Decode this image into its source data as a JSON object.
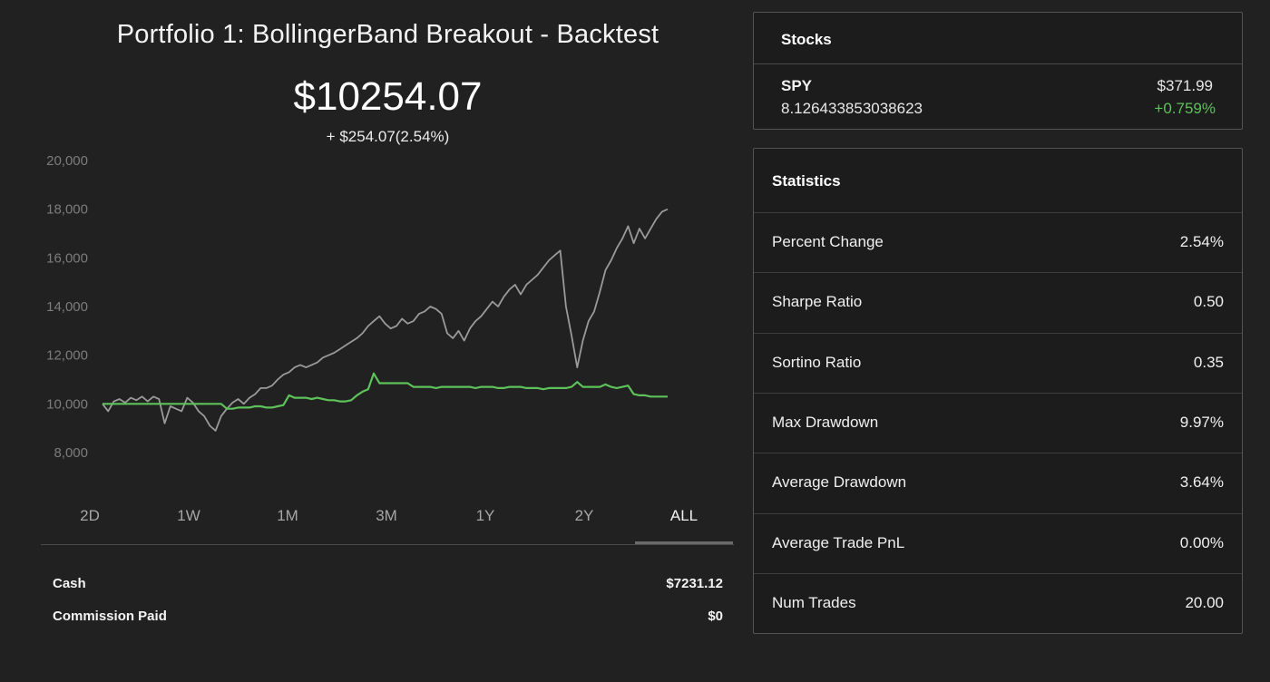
{
  "portfolio": {
    "title": "Portfolio 1: BollingerBand Breakout - Backtest",
    "value": "$10254.07",
    "change": "+ $254.07(2.54%)"
  },
  "ranges": [
    {
      "label": "2D",
      "active": false
    },
    {
      "label": "1W",
      "active": false
    },
    {
      "label": "1M",
      "active": false
    },
    {
      "label": "3M",
      "active": false
    },
    {
      "label": "1Y",
      "active": false
    },
    {
      "label": "2Y",
      "active": false
    },
    {
      "label": "ALL",
      "active": true
    }
  ],
  "account": {
    "cash_label": "Cash",
    "cash_value": "$7231.12",
    "commission_label": "Commission Paid",
    "commission_value": "$0"
  },
  "stocks": {
    "header": "Stocks",
    "items": [
      {
        "symbol": "SPY",
        "price": "$371.99",
        "quantity": "8.126433853038623",
        "change": "+0.759%"
      }
    ]
  },
  "statistics": {
    "header": "Statistics",
    "rows": [
      {
        "label": "Percent Change",
        "value": "2.54%"
      },
      {
        "label": "Sharpe Ratio",
        "value": "0.50"
      },
      {
        "label": "Sortino Ratio",
        "value": "0.35"
      },
      {
        "label": "Max Drawdown",
        "value": "9.97%"
      },
      {
        "label": "Average Drawdown",
        "value": "3.64%"
      },
      {
        "label": "Average Trade PnL",
        "value": "0.00%"
      },
      {
        "label": "Num Trades",
        "value": "20.00"
      }
    ]
  },
  "colors": {
    "benchmark_line": "#9a9a9a",
    "portfolio_line": "#5ec25a",
    "positive_change": "#5cc05c",
    "background": "#212121"
  },
  "chart_data": {
    "type": "line",
    "yticks": [
      "20,000",
      "18,000",
      "16,000",
      "14,000",
      "12,000",
      "10,000",
      "8,000"
    ],
    "ylim": [
      8000,
      20000
    ],
    "x": [
      0,
      1,
      2,
      3,
      4,
      5,
      6,
      7,
      8,
      9,
      10,
      11,
      12,
      13,
      14,
      15,
      16,
      17,
      18,
      19,
      20,
      21,
      22,
      23,
      24,
      25,
      26,
      27,
      28,
      29,
      30,
      31,
      32,
      33,
      34,
      35,
      36,
      37,
      38,
      39,
      40,
      41,
      42,
      43,
      44,
      45,
      46,
      47,
      48,
      49,
      50,
      51,
      52,
      53,
      54,
      55,
      56,
      57,
      58,
      59,
      60,
      61,
      62,
      63,
      64,
      65,
      66,
      67,
      68,
      69,
      70,
      71,
      72,
      73,
      74,
      75,
      76,
      77,
      78,
      79,
      80,
      81,
      82,
      83,
      84,
      85,
      86,
      87,
      88,
      89,
      90,
      91,
      92,
      93,
      94,
      95,
      96,
      97,
      98,
      99,
      100
    ],
    "series": [
      {
        "values": [
          10000,
          9700,
          10100,
          10200,
          10050,
          10250,
          10150,
          10300,
          10100,
          10300,
          10200,
          9200,
          9900,
          9800,
          9700,
          10250,
          10050,
          9700,
          9500,
          9100,
          8900,
          9500,
          9800,
          10050,
          10200,
          10000,
          10250,
          10400,
          10650,
          10650,
          10750,
          11000,
          11200,
          11300,
          11500,
          11600,
          11500,
          11600,
          11700,
          11900,
          12000,
          12100,
          12250,
          12400,
          12550,
          12700,
          12900,
          13200,
          13400,
          13600,
          13300,
          13100,
          13200,
          13500,
          13300,
          13400,
          13700,
          13800,
          14000,
          13900,
          13700,
          12900,
          12700,
          13000,
          12600,
          13100,
          13400,
          13600,
          13900,
          14200,
          14000,
          14400,
          14700,
          14900,
          14500,
          14900,
          15100,
          15300,
          15600,
          15900,
          16100,
          16300,
          14000,
          12800,
          11500,
          12600,
          13400,
          13800,
          14600,
          15500,
          15900,
          16400,
          16800,
          17300,
          16600,
          17200,
          16800,
          17200,
          17600,
          17900,
          18000
        ]
      },
      {
        "values": [
          10000,
          10000,
          10000,
          10000,
          10000,
          10000,
          10000,
          10000,
          10000,
          10000,
          10000,
          10000,
          10000,
          10000,
          10000,
          10000,
          10000,
          10000,
          10000,
          10000,
          10000,
          10000,
          9800,
          9800,
          9850,
          9850,
          9850,
          9900,
          9900,
          9850,
          9850,
          9900,
          9950,
          10350,
          10250,
          10250,
          10250,
          10200,
          10250,
          10200,
          10150,
          10150,
          10100,
          10100,
          10150,
          10350,
          10500,
          10600,
          11250,
          10850,
          10850,
          10850,
          10850,
          10850,
          10850,
          10700,
          10700,
          10700,
          10700,
          10650,
          10700,
          10700,
          10700,
          10700,
          10700,
          10700,
          10650,
          10700,
          10700,
          10700,
          10650,
          10650,
          10700,
          10700,
          10700,
          10650,
          10650,
          10650,
          10600,
          10650,
          10650,
          10650,
          10650,
          10700,
          10900,
          10700,
          10700,
          10700,
          10700,
          10800,
          10700,
          10650,
          10700,
          10750,
          10400,
          10350,
          10350,
          10300,
          10300,
          10300,
          10300
        ]
      }
    ]
  }
}
